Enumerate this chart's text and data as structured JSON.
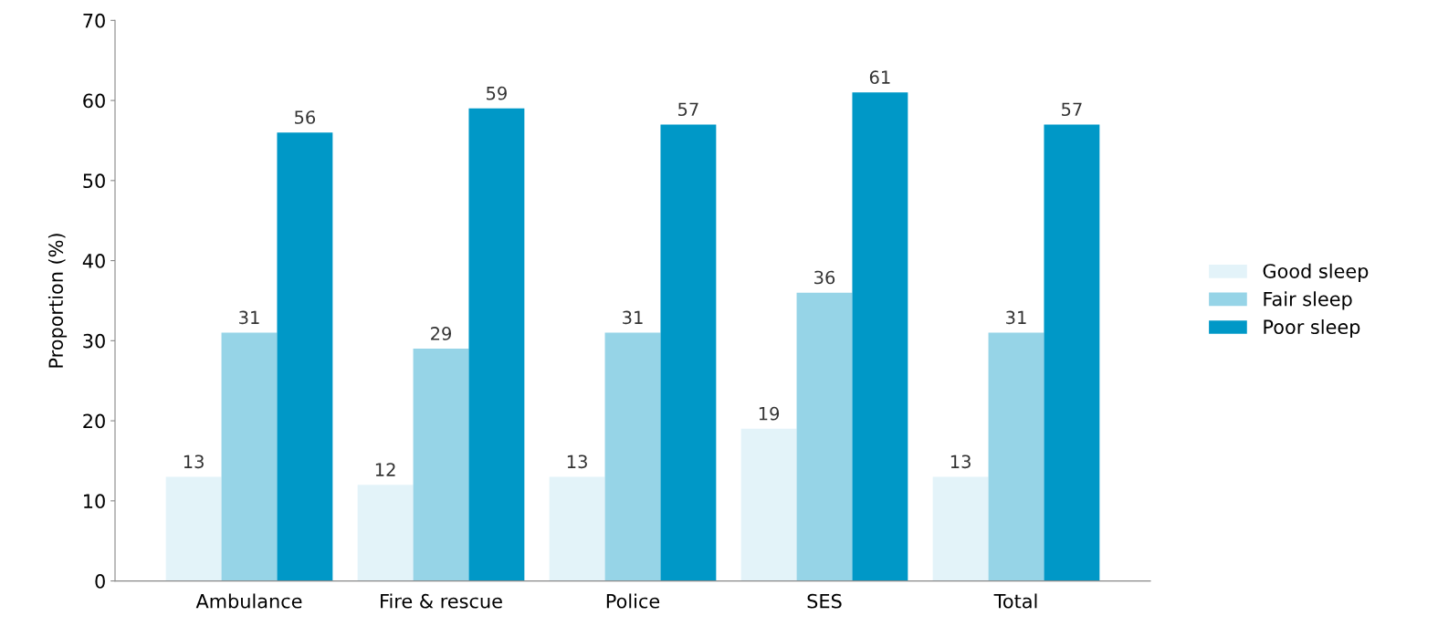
{
  "chart_data": {
    "type": "bar",
    "ylabel": "Proportion (%)",
    "categories": [
      "Ambulance",
      "Fire & rescue",
      "Police",
      "SES",
      "Total"
    ],
    "series": [
      {
        "name": "Good sleep",
        "color": "#e3f3f9",
        "values": [
          13,
          12,
          13,
          19,
          13
        ]
      },
      {
        "name": "Fair sleep",
        "color": "#96d4e7",
        "values": [
          31,
          29,
          31,
          36,
          31
        ]
      },
      {
        "name": "Poor sleep",
        "color": "#0098c7",
        "values": [
          56,
          59,
          57,
          61,
          57
        ]
      }
    ],
    "ylim": [
      0,
      70
    ],
    "yticks": [
      0,
      10,
      20,
      30,
      40,
      50,
      60,
      70
    ],
    "grid": false,
    "legend": "right",
    "data_labels": true
  }
}
